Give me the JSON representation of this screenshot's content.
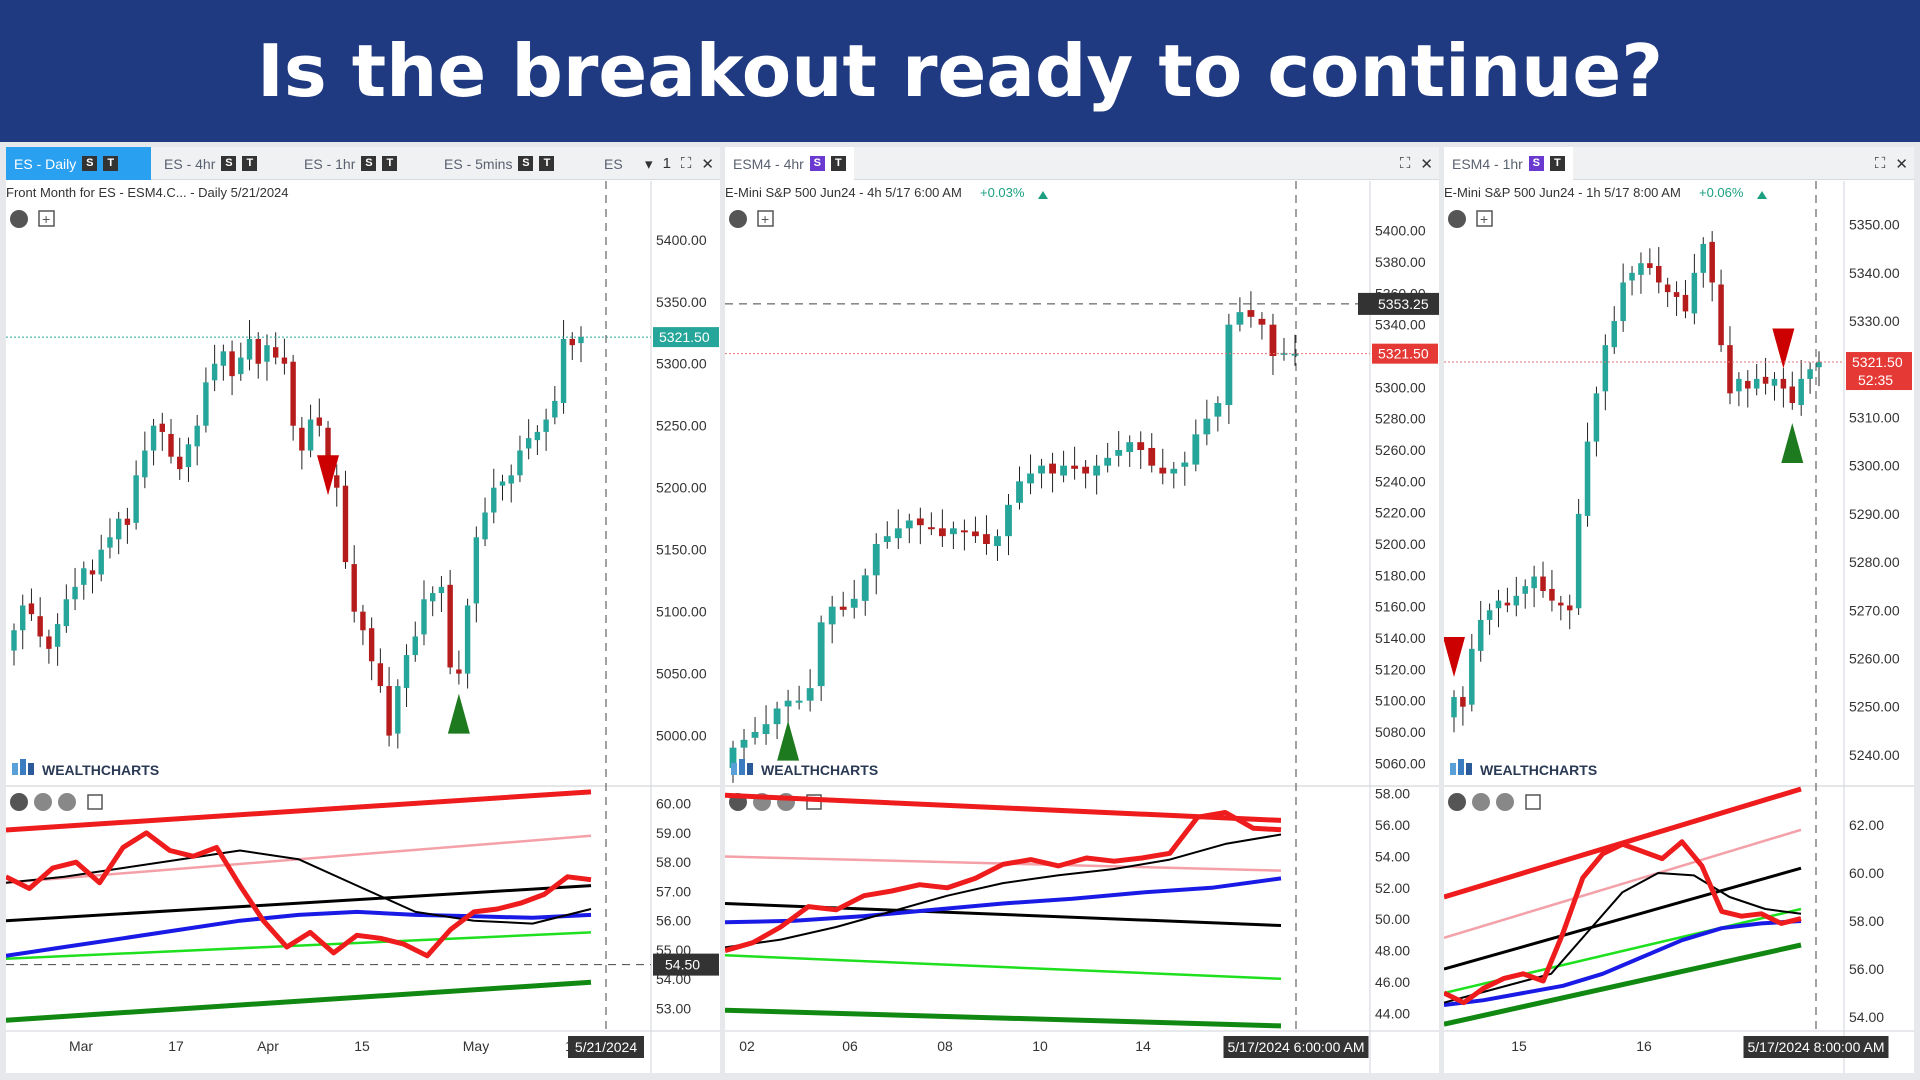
{
  "banner": {
    "title": "Is the breakout ready to continue?"
  },
  "brand": {
    "name": "WEALTHCHARTS"
  },
  "colors": {
    "banner": "#1f3a80",
    "up": "#26a69a",
    "down": "#b71c1c",
    "active_tab": "#2aa0f0"
  },
  "panels": [
    {
      "tabs": [
        {
          "label": "ES - Daily",
          "s": "S",
          "t": "T",
          "active": true
        },
        {
          "label": "ES - 4hr",
          "s": "S",
          "t": "T"
        },
        {
          "label": "ES - 1hr",
          "s": "S",
          "t": "T"
        },
        {
          "label": "ES - 5mins",
          "s": "S",
          "t": "T"
        },
        {
          "label": "ES",
          "s": "",
          "t": ""
        }
      ],
      "tab_overflow": "1",
      "info": "Front Month for ES - ESM4.C... - Daily  5/21/2024",
      "change": "",
      "last_price": "5321.50",
      "crosshair_price": "",
      "ind_label": "54.50",
      "date_label": "5/21/2024"
    },
    {
      "tabs": [
        {
          "label": "ESM4 - 4hr",
          "s": "S",
          "t": "T"
        }
      ],
      "info": "E-Mini S&P 500 Jun24 - 4h  5/17 6:00 AM",
      "change": "+0.03%",
      "last_price": "5321.50",
      "crosshair_price": "5353.25",
      "ind_label": "",
      "date_label": "5/17/2024 6:00:00 AM"
    },
    {
      "tabs": [
        {
          "label": "ESM4 - 1hr",
          "s": "S",
          "t": "T"
        }
      ],
      "info": "E-Mini S&P 500 Jun24 - 1h  5/17 8:00 AM",
      "change": "+0.06%",
      "last_price": "5321.50",
      "countdown": "52:35",
      "crosshair_price": "",
      "ind_label": "",
      "date_label": "5/17/2024 8:00:00 AM"
    }
  ],
  "chart_data": [
    {
      "type": "candlestick",
      "title": "ES - Daily",
      "price_ticks": [
        "5400.00",
        "5350.00",
        "5300.00",
        "5250.00",
        "5200.00",
        "5150.00",
        "5100.00",
        "5050.00",
        "5000.00"
      ],
      "ylim": [
        4965,
        5420
      ],
      "x_ticks": [
        "Mar",
        "17",
        "Apr",
        "15",
        "May",
        "1"
      ],
      "closes": [
        5085,
        5105,
        5098,
        5080,
        5070,
        5090,
        5110,
        5120,
        5135,
        5130,
        5150,
        5160,
        5175,
        5170,
        5210,
        5230,
        5250,
        5245,
        5225,
        5215,
        5235,
        5250,
        5285,
        5300,
        5310,
        5290,
        5305,
        5320,
        5300,
        5315,
        5305,
        5300,
        5250,
        5230,
        5255,
        5250,
        5210,
        5200,
        5140,
        5100,
        5085,
        5060,
        5040,
        5000,
        5040,
        5065,
        5080,
        5110,
        5115,
        5120,
        5055,
        5050,
        5105,
        5160,
        5180,
        5200,
        5205,
        5210,
        5230,
        5240,
        5245,
        5255,
        5270,
        5320,
        5315,
        5321.5
      ],
      "markers": [
        {
          "type": "down",
          "index": 36
        },
        {
          "type": "up",
          "index": 51
        }
      ],
      "indicator": {
        "ticks": [
          "60.00",
          "59.00",
          "58.00",
          "57.00",
          "56.00",
          "55.00",
          "54.00",
          "53.00"
        ],
        "ylim": [
          52.3,
          60.5
        ],
        "series": [
          {
            "color": "#ee1c1c",
            "width": 5,
            "values": [
              59.1,
              60.4
            ]
          },
          {
            "color": "#f4a0a8",
            "width": 2.5,
            "values": [
              57.3,
              58.9
            ]
          },
          {
            "color": "#000000",
            "width": 3,
            "values": [
              56.0,
              57.2
            ]
          },
          {
            "color": "#1fe01f",
            "width": 2.5,
            "values": [
              54.7,
              55.6
            ]
          },
          {
            "color": "#118811",
            "width": 5,
            "values": [
              52.6,
              53.9
            ]
          },
          {
            "color": "#1a1ae6",
            "width": 4,
            "values": [
              54.8,
              55.1,
              55.4,
              55.7,
              56.0,
              56.2,
              56.3,
              56.2,
              56.15,
              56.1,
              56.2
            ]
          },
          {
            "color": "#000000",
            "width": 2,
            "values": [
              57.3,
              57.5,
              57.8,
              58.1,
              58.4,
              58.1,
              57.2,
              56.3,
              56.0,
              55.9,
              56.4
            ]
          },
          {
            "color": "#ee1c1c",
            "width": 5,
            "values": [
              57.5,
              57.1,
              57.8,
              58.0,
              57.3,
              58.5,
              59.0,
              58.4,
              58.2,
              58.5,
              57.2,
              56.0,
              55.1,
              55.6,
              54.9,
              55.5,
              55.4,
              55.2,
              54.8,
              55.7,
              56.3,
              56.4,
              56.6,
              56.9,
              57.5,
              57.4
            ]
          }
        ]
      }
    },
    {
      "type": "candlestick",
      "title": "ESM4 - 4hr",
      "price_ticks": [
        "5400.00",
        "5380.00",
        "5360.00",
        "5340.00",
        "5320.00",
        "5300.00",
        "5280.00",
        "5260.00",
        "5240.00",
        "5220.00",
        "5200.00",
        "5180.00",
        "5160.00",
        "5140.00",
        "5120.00",
        "5100.00",
        "5080.00",
        "5060.00"
      ],
      "ylim": [
        5050,
        5410
      ],
      "x_ticks": [
        "02",
        "06",
        "08",
        "10",
        "14"
      ],
      "closes": [
        5070,
        5075,
        5080,
        5085,
        5095,
        5100,
        5100,
        5108,
        5150,
        5160,
        5158,
        5165,
        5180,
        5200,
        5205,
        5210,
        5215,
        5212,
        5210,
        5205,
        5210,
        5208,
        5205,
        5200,
        5205,
        5225,
        5240,
        5245,
        5250,
        5245,
        5250,
        5248,
        5245,
        5250,
        5255,
        5260,
        5265,
        5260,
        5250,
        5245,
        5248,
        5252,
        5270,
        5280,
        5290,
        5340,
        5348,
        5345,
        5340,
        5320,
        5322,
        5321.5
      ],
      "markers": [
        {
          "type": "up",
          "index": 5
        }
      ],
      "indicator": {
        "ticks": [
          "58.00",
          "56.00",
          "54.00",
          "52.00",
          "50.00",
          "48.00",
          "46.00",
          "44.00"
        ],
        "ylim": [
          43,
          58.3
        ],
        "series": [
          {
            "color": "#ee1c1c",
            "width": 5,
            "values": [
              57.9,
              56.3
            ]
          },
          {
            "color": "#f4a0a8",
            "width": 2.5,
            "values": [
              54.0,
              53.1
            ]
          },
          {
            "color": "#000000",
            "width": 3,
            "values": [
              51.0,
              49.6
            ]
          },
          {
            "color": "#1fe01f",
            "width": 2.5,
            "values": [
              47.7,
              46.2
            ]
          },
          {
            "color": "#118811",
            "width": 5,
            "values": [
              44.2,
              43.2
            ]
          },
          {
            "color": "#1a1ae6",
            "width": 4,
            "values": [
              49.8,
              49.9,
              50.2,
              50.6,
              51.0,
              51.3,
              51.7,
              52.0,
              52.6
            ]
          },
          {
            "color": "#000000",
            "width": 2,
            "values": [
              48.2,
              48.7,
              49.5,
              50.5,
              51.5,
              52.3,
              52.8,
              53.2,
              53.8,
              54.8,
              55.4
            ]
          },
          {
            "color": "#ee1c1c",
            "width": 5,
            "values": [
              48.0,
              48.5,
              49.5,
              50.8,
              50.6,
              51.5,
              51.8,
              52.2,
              52.0,
              52.6,
              53.5,
              53.8,
              53.4,
              53.9,
              53.7,
              53.9,
              54.2,
              56.5,
              56.8,
              55.8,
              55.7
            ]
          }
        ]
      }
    },
    {
      "type": "candlestick",
      "title": "ESM4 - 1hr",
      "price_ticks": [
        "5350.00",
        "5340.00",
        "5330.00",
        "5320.00",
        "5310.00",
        "5300.00",
        "5290.00",
        "5280.00",
        "5270.00",
        "5260.00",
        "5250.00",
        "5240.00"
      ],
      "ylim": [
        5235,
        5352
      ],
      "x_ticks": [
        "15",
        "16"
      ],
      "closes": [
        5252,
        5250,
        5262,
        5268,
        5270,
        5272,
        5271,
        5273,
        5275,
        5277,
        5274,
        5272,
        5271,
        5270,
        5290,
        5305,
        5315,
        5325,
        5330,
        5338,
        5340,
        5342,
        5341,
        5338,
        5336,
        5335,
        5332,
        5340,
        5346,
        5338,
        5325,
        5315,
        5318,
        5316,
        5318,
        5317,
        5318,
        5316,
        5313,
        5318,
        5320,
        5321.5
      ],
      "markers": [
        {
          "type": "down",
          "index": 0
        },
        {
          "type": "down",
          "index": 37
        },
        {
          "type": "up",
          "index": 38
        }
      ],
      "indicator": {
        "ticks": [
          "62.00",
          "60.00",
          "58.00",
          "56.00",
          "54.00"
        ],
        "ylim": [
          53.5,
          63.5
        ],
        "series": [
          {
            "color": "#ee1c1c",
            "width": 5,
            "values": [
              59.0,
              63.5
            ]
          },
          {
            "color": "#f4a0a8",
            "width": 2.5,
            "values": [
              57.3,
              61.8
            ]
          },
          {
            "color": "#000000",
            "width": 3,
            "values": [
              56.0,
              60.2
            ]
          },
          {
            "color": "#1fe01f",
            "width": 2.5,
            "values": [
              55.0,
              58.5
            ]
          },
          {
            "color": "#118811",
            "width": 5,
            "values": [
              53.7,
              57.0
            ]
          },
          {
            "color": "#1a1ae6",
            "width": 4,
            "values": [
              54.5,
              54.7,
              55.0,
              55.3,
              55.8,
              56.5,
              57.2,
              57.7,
              57.9,
              58.0
            ]
          },
          {
            "color": "#000000",
            "width": 2,
            "values": [
              54.6,
              55.0,
              55.4,
              55.8,
              57.5,
              59.2,
              60.0,
              59.9,
              59.0,
              58.5,
              58.3
            ]
          },
          {
            "color": "#ee1c1c",
            "width": 5,
            "values": [
              55.0,
              54.6,
              55.2,
              55.6,
              55.8,
              55.5,
              57.5,
              59.8,
              60.8,
              61.2,
              60.9,
              60.6,
              61.3,
              60.3,
              58.4,
              58.2,
              58.3,
              57.9,
              58.1
            ]
          }
        ]
      }
    }
  ]
}
